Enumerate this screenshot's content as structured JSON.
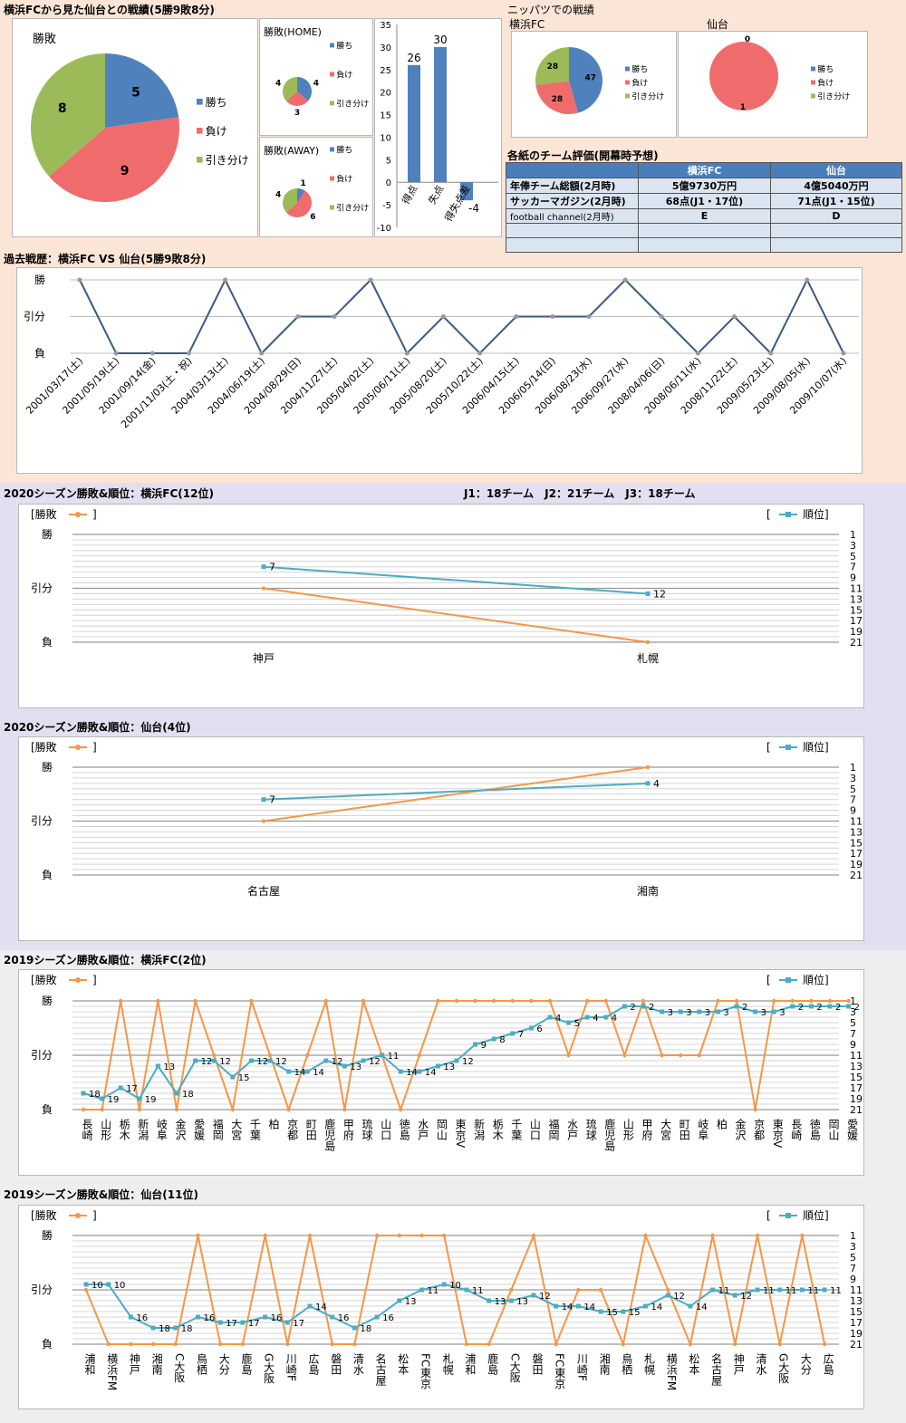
{
  "colors": {
    "win": "#4f81bd",
    "loss": "#f06c6c",
    "draw": "#9bbb59",
    "line_dark": "#3c5a82",
    "rank": "#4bacc6",
    "result": "#f79646",
    "peach": "#fbe5d6",
    "lavender": "#e4dff0",
    "grey": "#eeeeee",
    "header_blue": "#4a7ebb"
  },
  "h2h": {
    "title": "横浜FCから見た仙台との戦績(5勝9敗8分)",
    "main_label": "勝敗",
    "legend": [
      "勝ち",
      "負け",
      "引き分け"
    ],
    "home_label": "勝敗(HOME)",
    "away_label": "勝敗(AWAY)",
    "chart_data": [
      {
        "type": "pie",
        "title": "勝敗",
        "labels": [
          "勝ち",
          "負け",
          "引き分け"
        ],
        "values": [
          5,
          9,
          8
        ]
      },
      {
        "type": "pie",
        "title": "勝敗(HOME)",
        "labels": [
          "勝ち",
          "負け",
          "引き分け"
        ],
        "values": [
          4,
          3,
          4
        ]
      },
      {
        "type": "pie",
        "title": "勝敗(AWAY)",
        "labels": [
          "勝ち",
          "負け",
          "引き分け"
        ],
        "values": [
          1,
          6,
          4
        ]
      },
      {
        "type": "bar",
        "categories": [
          "得点",
          "失点",
          "得失点差"
        ],
        "values": [
          26,
          30,
          -4
        ],
        "ylim": [
          -10,
          35
        ],
        "yticks": [
          35,
          30,
          25,
          20,
          15,
          10,
          5,
          0,
          -5,
          -10
        ]
      }
    ]
  },
  "nippatsu": {
    "title": "ニッパツでの戦績",
    "team_a": "横浜FC",
    "team_b": "仙台",
    "legend": [
      "勝ち",
      "負け",
      "引き分け"
    ],
    "chart_data": [
      {
        "type": "pie",
        "title": "横浜FC",
        "labels": [
          "勝ち",
          "負け",
          "引き分け"
        ],
        "values": [
          47,
          28,
          28
        ]
      },
      {
        "type": "pie",
        "title": "仙台",
        "labels": [
          "勝ち",
          "負け",
          "引き分け"
        ],
        "values": [
          0,
          1,
          0
        ]
      }
    ]
  },
  "eval": {
    "title": "各紙のチーム評価(開幕時予想)",
    "columns": [
      "",
      "横浜FC",
      "仙台"
    ],
    "rows": [
      [
        "年俸チーム総額(2月時)",
        "5億9730万円",
        "4億5040万円"
      ],
      [
        "サッカーマガジン(2月時)",
        "68点(J1・17位)",
        "71点(J1・15位)"
      ],
      [
        "football channel(2月時)",
        "E",
        "D"
      ],
      [
        "",
        "",
        ""
      ],
      [
        "",
        "",
        ""
      ]
    ]
  },
  "history": {
    "title": "過去戦歴：横浜FC VS 仙台(5勝9敗8分)",
    "ylabels": [
      "勝",
      "引分",
      "負"
    ],
    "chart_data": {
      "type": "line",
      "y_encoding": {
        "勝": 2,
        "引分": 1,
        "負": 0
      },
      "x": [
        "2001/03/17(土)",
        "2001/05/19(土)",
        "2001/09/14(金)",
        "2001/11/03(土・祝)",
        "2004/03/13(土)",
        "2004/06/19(土)",
        "2004/08/29(日)",
        "2004/11/27(土)",
        "2005/04/02(土)",
        "2005/06/11(土)",
        "2005/08/20(土)",
        "2005/10/22(土)",
        "2006/04/15(土)",
        "2006/05/14(日)",
        "2006/08/23(水)",
        "2006/09/27(水)",
        "2008/04/06(日)",
        "2008/06/11(水)",
        "2008/11/22(土)",
        "2009/05/23(土)",
        "2009/08/05(水)",
        "2009/10/07(水)"
      ],
      "values": [
        2,
        0,
        0,
        0,
        2,
        0,
        1,
        1,
        2,
        0,
        1,
        0,
        1,
        1,
        1,
        2,
        1,
        0,
        1,
        0,
        2,
        0
      ]
    }
  },
  "league_note": "J1：18チーム　J2：21チーム　J3：18チーム",
  "season": [
    {
      "title": "2020シーズン勝敗&順位：横浜FC(12位)",
      "legend_result": "[勝敗",
      "legend_rank": "順位]",
      "ylabels": [
        "勝",
        "引分",
        "負"
      ],
      "rank_ticks": [
        "1",
        "3",
        "5",
        "7",
        "9",
        "11",
        "13",
        "15",
        "17",
        "19",
        "21"
      ],
      "chart_data": {
        "type": "line",
        "categories": [
          "神戸",
          "札幌"
        ],
        "series": [
          {
            "name": "勝敗",
            "values": [
              1,
              0
            ]
          },
          {
            "name": "順位",
            "values": [
              7,
              12
            ]
          }
        ]
      }
    },
    {
      "title": "2020シーズン勝敗&順位：仙台(4位)",
      "legend_result": "[勝敗",
      "legend_rank": "順位]",
      "ylabels": [
        "勝",
        "引分",
        "負"
      ],
      "rank_ticks": [
        "1",
        "3",
        "5",
        "7",
        "9",
        "11",
        "13",
        "15",
        "17",
        "19",
        "21"
      ],
      "chart_data": {
        "type": "line",
        "categories": [
          "名古屋",
          "湘南"
        ],
        "series": [
          {
            "name": "勝敗",
            "values": [
              1,
              2
            ]
          },
          {
            "name": "順位",
            "values": [
              7,
              4
            ]
          }
        ]
      }
    },
    {
      "title": "2019シーズン勝敗&順位：横浜FC(2位)",
      "legend_result": "[勝敗",
      "legend_rank": "順位]",
      "ylabels": [
        "勝",
        "引分",
        "負"
      ],
      "rank_ticks": [
        "1",
        "3",
        "5",
        "7",
        "9",
        "11",
        "13",
        "15",
        "17",
        "19",
        "21"
      ],
      "chart_data": {
        "type": "line",
        "categories": [
          "長崎",
          "山形",
          "栃木",
          "新潟",
          "岐阜",
          "金沢",
          "愛媛",
          "福岡",
          "大宮",
          "千葉",
          "柏",
          "京都",
          "町田",
          "鹿児島",
          "甲府",
          "琉球",
          "山口",
          "徳島",
          "水戸",
          "岡山",
          "東京V",
          "新潟",
          "栃木",
          "千葉",
          "山口",
          "福岡",
          "水戸",
          "琉球",
          "鹿児島",
          "山形",
          "甲府",
          "大宮",
          "町田",
          "岐阜",
          "柏",
          "金沢",
          "京都",
          "東京V",
          "長崎",
          "徳島",
          "岡山",
          "愛媛"
        ],
        "series": [
          {
            "name": "勝敗",
            "values": [
              0,
              0,
              2,
              0,
              2,
              0,
              2,
              1,
              0,
              2,
              1,
              0,
              1,
              2,
              0,
              2,
              1,
              0,
              1,
              2,
              2,
              2,
              2,
              2,
              2,
              2,
              1,
              2,
              2,
              1,
              2,
              1,
              1,
              1,
              2,
              2,
              0,
              2,
              2,
              2,
              2,
              2
            ]
          },
          {
            "name": "順位",
            "values": [
              18,
              19,
              17,
              19,
              13,
              18,
              12,
              12,
              15,
              12,
              12,
              14,
              14,
              12,
              13,
              12,
              11,
              14,
              14,
              13,
              12,
              9,
              8,
              7,
              6,
              4,
              5,
              4,
              4,
              2,
              2,
              3,
              3,
              3,
              3,
              2,
              3,
              3,
              2,
              2,
              2,
              2
            ]
          }
        ]
      }
    },
    {
      "title": "2019シーズン勝敗&順位：仙台(11位)",
      "legend_result": "[勝敗",
      "legend_rank": "順位]",
      "ylabels": [
        "勝",
        "引分",
        "負"
      ],
      "rank_ticks": [
        "1",
        "3",
        "5",
        "7",
        "9",
        "11",
        "13",
        "15",
        "17",
        "19",
        "21"
      ],
      "chart_data": {
        "type": "line",
        "categories": [
          "浦和",
          "横浜FM",
          "神戸",
          "湘南",
          "C大阪",
          "鳥栖",
          "大分",
          "鹿島",
          "G大阪",
          "川崎F",
          "広島",
          "磐田",
          "清水",
          "名古屋",
          "松本",
          "FC東京",
          "札幌",
          "浦和",
          "鹿島",
          "C大阪",
          "磐田",
          "FC東京",
          "川崎F",
          "湘南",
          "鳥栖",
          "札幌",
          "横浜FM",
          "松本",
          "名古屋",
          "神戸",
          "清水",
          "G大阪",
          "大分",
          "広島"
        ],
        "series": [
          {
            "name": "勝敗",
            "values": [
              1,
              0,
              0,
              0,
              0,
              2,
              0,
              0,
              2,
              0,
              2,
              0,
              0,
              2,
              2,
              2,
              2,
              0,
              0,
              1,
              2,
              0,
              1,
              1,
              0,
              2,
              1,
              0,
              2,
              0,
              2,
              0,
              2,
              0
            ]
          },
          {
            "name": "順位",
            "values": [
              10,
              10,
              16,
              18,
              18,
              16,
              17,
              17,
              16,
              17,
              14,
              16,
              18,
              16,
              13,
              11,
              10,
              11,
              13,
              13,
              12,
              14,
              14,
              15,
              15,
              14,
              12,
              14,
              11,
              12,
              11,
              11,
              11,
              11
            ]
          }
        ]
      }
    }
  ]
}
